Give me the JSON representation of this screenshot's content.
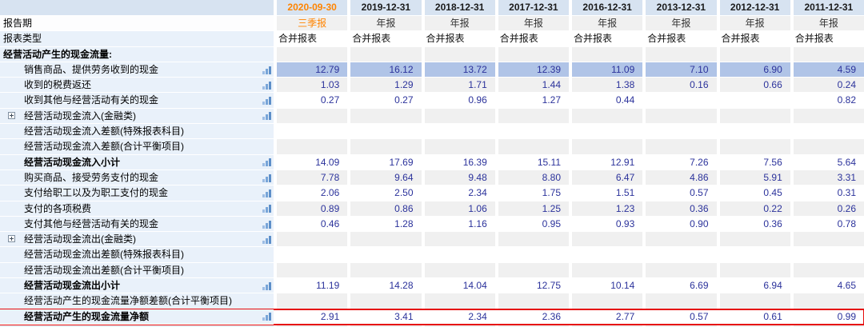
{
  "table": {
    "title_semantic": "cash-flow-statement-operating-activities",
    "colors": {
      "accent_orange": "#ff8400",
      "header_bg": "#d7e3f1",
      "label_bg": "#e9f1fa",
      "row_alt_bg": "#f0f0f0",
      "highlight_row_bg": "#b0c4e7",
      "value_text": "#2b329b",
      "red_marker": "#e60d0d",
      "chart_icon_blue": "#78a5d8"
    },
    "header": {
      "report_period_label": "报告期",
      "report_type_label": "报表类型",
      "columns": [
        {
          "date": "2020-09-30",
          "period": "三季报",
          "report_type": "合并报表",
          "accent": true
        },
        {
          "date": "2019-12-31",
          "period": "年报",
          "report_type": "合并报表",
          "accent": false
        },
        {
          "date": "2018-12-31",
          "period": "年报",
          "report_type": "合并报表",
          "accent": false
        },
        {
          "date": "2017-12-31",
          "period": "年报",
          "report_type": "合并报表",
          "accent": false
        },
        {
          "date": "2016-12-31",
          "period": "年报",
          "report_type": "合并报表",
          "accent": false
        },
        {
          "date": "2013-12-31",
          "period": "年报",
          "report_type": "合并报表",
          "accent": false
        },
        {
          "date": "2012-12-31",
          "period": "年报",
          "report_type": "合并报表",
          "accent": false
        },
        {
          "date": "2011-12-31",
          "period": "年报",
          "report_type": "合并报表",
          "accent": false
        }
      ]
    },
    "rows": [
      {
        "label": "经营活动产生的现金流量:",
        "indent": 0,
        "bold": true,
        "expand_icon": false,
        "chart_icon": false,
        "highlight": false,
        "marked_red": false,
        "values": [
          "",
          "",
          "",
          "",
          "",
          "",
          "",
          ""
        ]
      },
      {
        "label": "销售商品、提供劳务收到的现金",
        "indent": 1,
        "bold": false,
        "expand_icon": false,
        "chart_icon": true,
        "highlight": true,
        "marked_red": false,
        "values": [
          "12.79",
          "16.12",
          "13.72",
          "12.39",
          "11.09",
          "7.10",
          "6.90",
          "4.59"
        ]
      },
      {
        "label": "收到的税费返还",
        "indent": 1,
        "bold": false,
        "expand_icon": false,
        "chart_icon": true,
        "highlight": false,
        "marked_red": false,
        "values": [
          "1.03",
          "1.29",
          "1.71",
          "1.44",
          "1.38",
          "0.16",
          "0.66",
          "0.24"
        ]
      },
      {
        "label": "收到其他与经营活动有关的现金",
        "indent": 1,
        "bold": false,
        "expand_icon": false,
        "chart_icon": true,
        "highlight": false,
        "marked_red": false,
        "values": [
          "0.27",
          "0.27",
          "0.96",
          "1.27",
          "0.44",
          "",
          "",
          "0.82"
        ]
      },
      {
        "label": "经营活动现金流入(金融类)",
        "indent": 1,
        "bold": false,
        "expand_icon": true,
        "chart_icon": true,
        "highlight": false,
        "marked_red": false,
        "values": [
          "",
          "",
          "",
          "",
          "",
          "",
          "",
          ""
        ]
      },
      {
        "label": "经营活动现金流入差额(特殊报表科目)",
        "indent": 1,
        "bold": false,
        "expand_icon": false,
        "chart_icon": false,
        "highlight": false,
        "marked_red": false,
        "values": [
          "",
          "",
          "",
          "",
          "",
          "",
          "",
          ""
        ]
      },
      {
        "label": "经营活动现金流入差额(合计平衡项目)",
        "indent": 1,
        "bold": false,
        "expand_icon": false,
        "chart_icon": false,
        "highlight": false,
        "marked_red": false,
        "values": [
          "",
          "",
          "",
          "",
          "",
          "",
          "",
          ""
        ]
      },
      {
        "label": "经营活动现金流入小计",
        "indent": 1,
        "bold": true,
        "expand_icon": false,
        "chart_icon": true,
        "highlight": false,
        "marked_red": false,
        "values": [
          "14.09",
          "17.69",
          "16.39",
          "15.11",
          "12.91",
          "7.26",
          "7.56",
          "5.64"
        ]
      },
      {
        "label": "购买商品、接受劳务支付的现金",
        "indent": 1,
        "bold": false,
        "expand_icon": false,
        "chart_icon": true,
        "highlight": false,
        "marked_red": false,
        "values": [
          "7.78",
          "9.64",
          "9.48",
          "8.80",
          "6.47",
          "4.86",
          "5.91",
          "3.31"
        ]
      },
      {
        "label": "支付给职工以及为职工支付的现金",
        "indent": 1,
        "bold": false,
        "expand_icon": false,
        "chart_icon": true,
        "highlight": false,
        "marked_red": false,
        "values": [
          "2.06",
          "2.50",
          "2.34",
          "1.75",
          "1.51",
          "0.57",
          "0.45",
          "0.31"
        ]
      },
      {
        "label": "支付的各项税费",
        "indent": 1,
        "bold": false,
        "expand_icon": false,
        "chart_icon": true,
        "highlight": false,
        "marked_red": false,
        "values": [
          "0.89",
          "0.86",
          "1.06",
          "1.25",
          "1.23",
          "0.36",
          "0.22",
          "0.26"
        ]
      },
      {
        "label": "支付其他与经营活动有关的现金",
        "indent": 1,
        "bold": false,
        "expand_icon": false,
        "chart_icon": true,
        "highlight": false,
        "marked_red": false,
        "values": [
          "0.46",
          "1.28",
          "1.16",
          "0.95",
          "0.93",
          "0.90",
          "0.36",
          "0.78"
        ]
      },
      {
        "label": "经营活动现金流出(金融类)",
        "indent": 1,
        "bold": false,
        "expand_icon": true,
        "chart_icon": true,
        "highlight": false,
        "marked_red": false,
        "values": [
          "",
          "",
          "",
          "",
          "",
          "",
          "",
          ""
        ]
      },
      {
        "label": "经营活动现金流出差额(特殊报表科目)",
        "indent": 1,
        "bold": false,
        "expand_icon": false,
        "chart_icon": false,
        "highlight": false,
        "marked_red": false,
        "values": [
          "",
          "",
          "",
          "",
          "",
          "",
          "",
          ""
        ]
      },
      {
        "label": "经营活动现金流出差额(合计平衡项目)",
        "indent": 1,
        "bold": false,
        "expand_icon": false,
        "chart_icon": false,
        "highlight": false,
        "marked_red": false,
        "values": [
          "",
          "",
          "",
          "",
          "",
          "",
          "",
          ""
        ]
      },
      {
        "label": "经营活动现金流出小计",
        "indent": 1,
        "bold": true,
        "expand_icon": false,
        "chart_icon": true,
        "highlight": false,
        "marked_red": false,
        "values": [
          "11.19",
          "14.28",
          "14.04",
          "12.75",
          "10.14",
          "6.69",
          "6.94",
          "4.65"
        ]
      },
      {
        "label": "经营活动产生的现金流量净额差额(合计平衡项目)",
        "indent": 1,
        "bold": false,
        "expand_icon": false,
        "chart_icon": false,
        "highlight": false,
        "marked_red": false,
        "values": [
          "",
          "",
          "",
          "",
          "",
          "",
          "",
          ""
        ]
      },
      {
        "label": "经营活动产生的现金流量净额",
        "indent": 1,
        "bold": true,
        "expand_icon": false,
        "chart_icon": true,
        "highlight": false,
        "marked_red": true,
        "values": [
          "2.91",
          "3.41",
          "2.34",
          "2.36",
          "2.77",
          "0.57",
          "0.61",
          "0.99"
        ]
      }
    ]
  }
}
